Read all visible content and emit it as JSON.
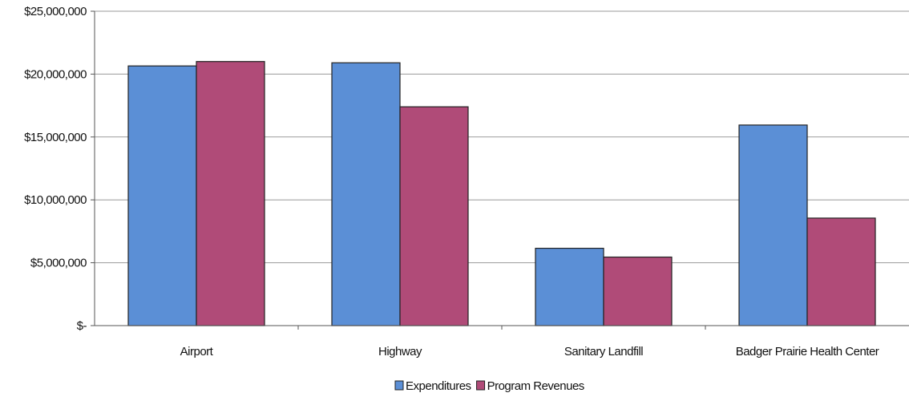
{
  "chart_data": {
    "type": "bar",
    "categories": [
      "Airport",
      "Highway",
      "Sanitary Landfill",
      "Badger Prairie Health Center"
    ],
    "series": [
      {
        "name": "Expenditures",
        "values": [
          20650000,
          20900000,
          6150000,
          15950000
        ],
        "color": "#5b8fd6"
      },
      {
        "name": "Program Revenues",
        "values": [
          21000000,
          17400000,
          5450000,
          8550000
        ],
        "color": "#b04b78"
      }
    ],
    "ylim": [
      0,
      25000000
    ],
    "yticks": [
      0,
      5000000,
      10000000,
      15000000,
      20000000,
      25000000
    ],
    "ytick_labels": [
      "$-",
      "$5,000,000",
      "$10,000,000",
      "$15,000,000",
      "$20,000,000",
      "$25,000,000"
    ],
    "grid": true,
    "legend": "bottom",
    "title": "",
    "xlabel": "",
    "ylabel": ""
  }
}
